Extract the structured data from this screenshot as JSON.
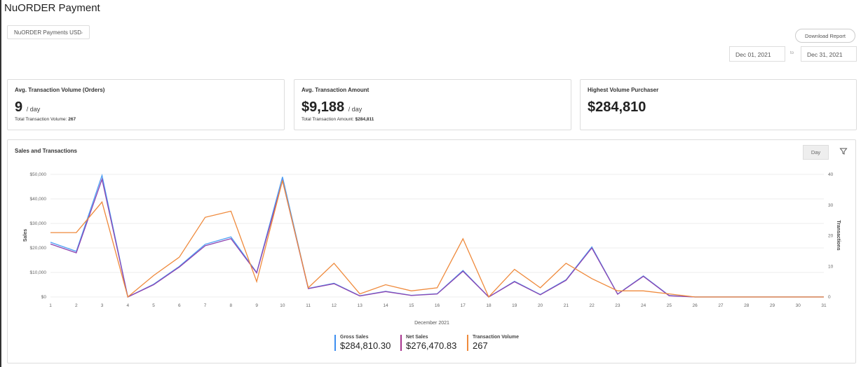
{
  "header": {
    "title": "NuORDER Payment",
    "account_select": "NuORDER Payments USD",
    "download_label": "Download Report",
    "date_from": "Dec 01, 2021",
    "date_to": "Dec 31, 2021",
    "to_label": "to"
  },
  "cards": [
    {
      "label": "Avg. Transaction Volume (Orders)",
      "value": "9",
      "unit": "/ day",
      "sub_label": "Total Transaction Volume:",
      "sub_value": "267"
    },
    {
      "label": "Avg. Transaction Amount",
      "value": "$9,188",
      "unit": "/ day",
      "sub_label": "Total Transaction Amount:",
      "sub_value": "$284,811"
    },
    {
      "label": "Highest Volume Purchaser",
      "value": "$284,810"
    }
  ],
  "panel": {
    "title": "Sales and Transactions",
    "interval": "Day",
    "filter_icon": "filter-icon"
  },
  "legend": [
    {
      "name": "Gross Sales",
      "value": "$284,810.30",
      "color": "#3d8ef0"
    },
    {
      "name": "Net Sales",
      "value": "$276,470.83",
      "color": "#a8358f"
    },
    {
      "name": "Transaction Volume",
      "value": "267",
      "color": "#ef8a3c"
    }
  ],
  "chart_data": {
    "type": "line",
    "xlabel": "December 2021",
    "ylabel": "Sales",
    "y2label": "Transactions",
    "x": [
      1,
      2,
      3,
      4,
      5,
      6,
      7,
      8,
      9,
      10,
      11,
      12,
      13,
      14,
      15,
      16,
      17,
      18,
      19,
      20,
      21,
      22,
      23,
      24,
      25,
      26,
      27,
      28,
      29,
      30,
      31
    ],
    "ylim": [
      0,
      50000
    ],
    "y2lim": [
      0,
      40
    ],
    "yticks": [
      "$0",
      "$10,000",
      "$20,000",
      "$30,000",
      "$40,000",
      "$50,000"
    ],
    "y2ticks": [
      "0",
      "10",
      "20",
      "30",
      "40"
    ],
    "grid": true,
    "series": [
      {
        "name": "Gross Sales",
        "axis": "left",
        "color": "#4a9ff5",
        "values": [
          22300,
          18600,
          49600,
          0,
          5200,
          12500,
          21500,
          24500,
          10000,
          49000,
          3500,
          5600,
          500,
          2300,
          700,
          1300,
          10800,
          0,
          6400,
          1000,
          7000,
          20400,
          1200,
          8600,
          600,
          0,
          0,
          0,
          0,
          0,
          0
        ]
      },
      {
        "name": "Net Sales",
        "axis": "left",
        "color": "#8e44b0",
        "values": [
          21600,
          18000,
          48000,
          0,
          5000,
          12200,
          20900,
          23800,
          9800,
          47500,
          3400,
          5400,
          400,
          2200,
          600,
          1200,
          10500,
          0,
          6200,
          900,
          6800,
          20000,
          1100,
          8400,
          500,
          0,
          0,
          0,
          0,
          0,
          0
        ]
      },
      {
        "name": "Transaction Volume",
        "axis": "right",
        "color": "#ef8a3c",
        "values": [
          21,
          21,
          31,
          0,
          7,
          13,
          26,
          28,
          5,
          38,
          3,
          11,
          1,
          4,
          2,
          3,
          19,
          0,
          9,
          3,
          11,
          6,
          2,
          2,
          1,
          0,
          0,
          0,
          0,
          0,
          0
        ]
      }
    ]
  }
}
